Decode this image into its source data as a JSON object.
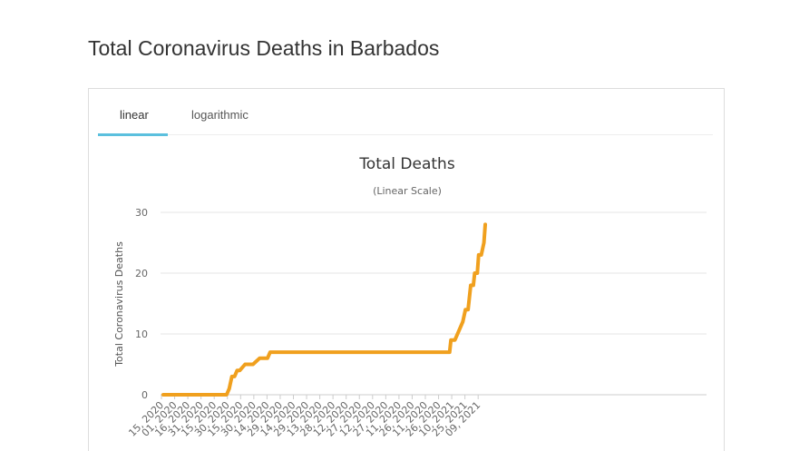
{
  "page": {
    "title": "Total Coronavirus Deaths in Barbados"
  },
  "tabs": [
    {
      "label": "linear",
      "active": true
    },
    {
      "label": "logarithmic",
      "active": false
    }
  ],
  "colors": {
    "series": "#f0a01e",
    "tab_active": "#5bc0de",
    "grid": "#e6e6e6"
  },
  "chart_data": {
    "type": "line",
    "title": "Total Deaths",
    "subtitle": "(Linear Scale)",
    "xlabel": "",
    "ylabel": "Total Coronavirus Deaths",
    "ylim": [
      0,
      30
    ],
    "y_ticks": [
      0,
      10,
      20,
      30
    ],
    "grid": true,
    "legend": "none",
    "x_tick_labels": [
      "15, 2020",
      "01, 2020",
      "16, 2020",
      "31, 2020",
      "15, 2020",
      "30, 2020",
      "15, 2020",
      "30, 2020",
      "14, 2020",
      "29, 2020",
      "14, 2020",
      "29, 2020",
      "13, 2020",
      "28, 2020",
      "12, 2020",
      "27, 2020",
      "12, 2020",
      "27, 2020",
      "11, 2020",
      "26, 2020",
      "11, 2020",
      "26, 2020",
      "10, 2021",
      "25, 2021",
      "09, 2021"
    ],
    "series": [
      {
        "x": [
          0,
          4.8,
          5.0,
          5.2,
          5.4,
          5.6,
          5.8,
          6.2,
          6.4,
          6.6,
          6.8,
          7.3,
          7.5,
          7.9,
          8.1,
          21.7,
          21.8,
          22.1,
          22.3,
          22.5,
          22.7,
          22.9,
          23.1,
          23.3,
          23.5,
          23.6,
          23.8,
          23.9,
          24.1,
          24.2,
          24.3,
          24.4
        ],
        "y": [
          0,
          0,
          1,
          3,
          3,
          4,
          4,
          5,
          5,
          5,
          5,
          6,
          6,
          6,
          7,
          7,
          9,
          9,
          10,
          11,
          12,
          14,
          14,
          18,
          18,
          20,
          20,
          23,
          23,
          24,
          25,
          28
        ]
      }
    ]
  }
}
